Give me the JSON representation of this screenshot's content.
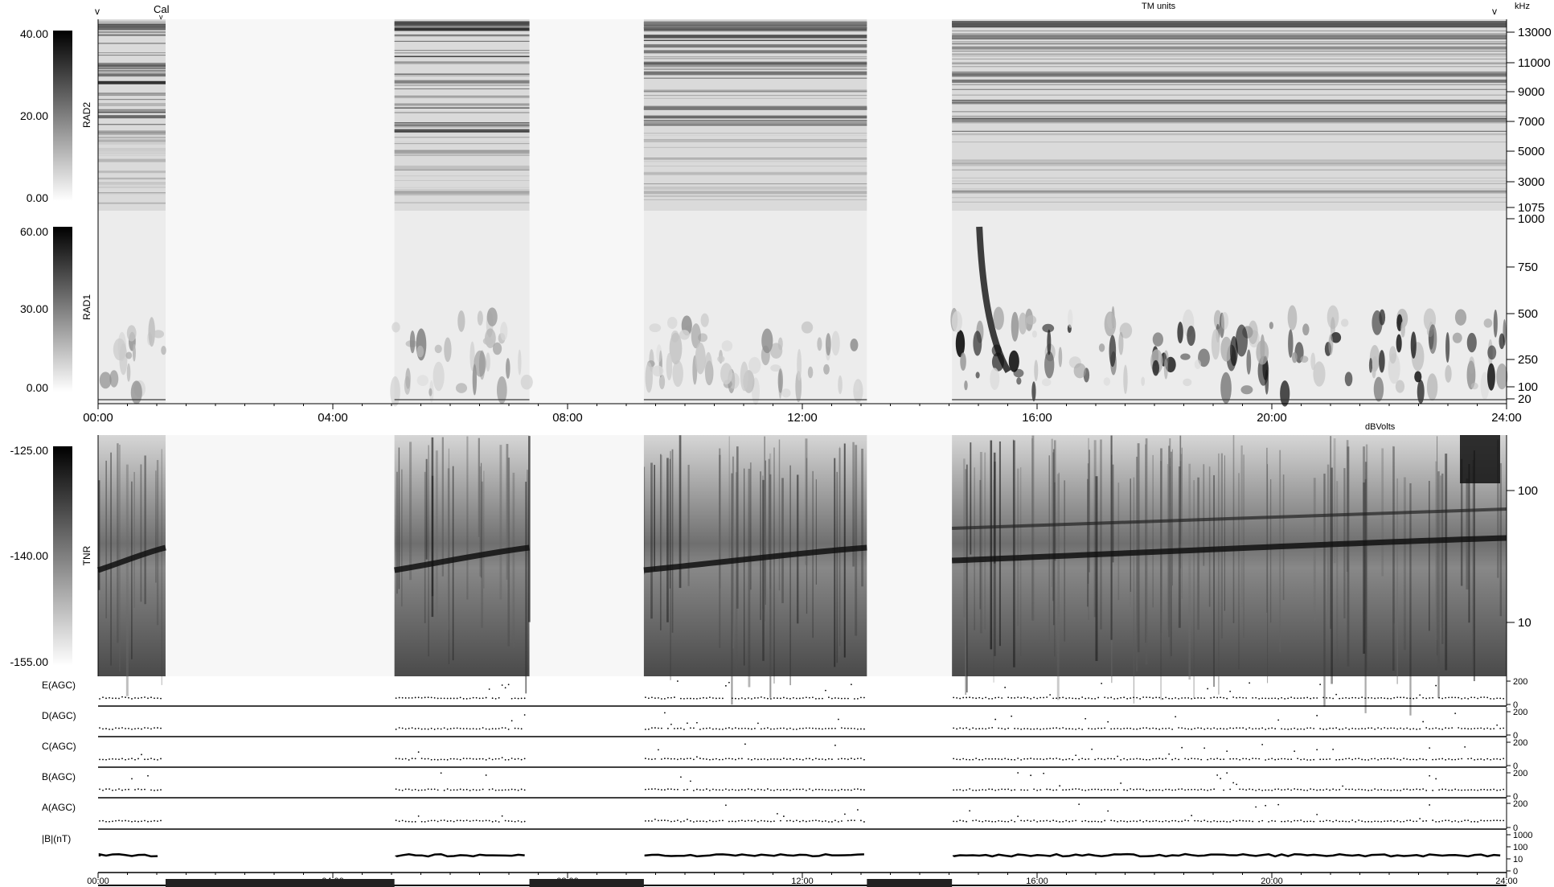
{
  "header": {
    "marker_left": "v",
    "cal_label": "Cal",
    "cal_marker": "v",
    "marker_right": "v",
    "tm_units": "TM units",
    "khz": "kHz",
    "dbvolts": "dBVolts"
  },
  "time_ticks": [
    "00:00",
    "04:00",
    "08:00",
    "12:00",
    "16:00",
    "20:00",
    "24:00"
  ],
  "colors": {
    "background": "#ffffff",
    "ink": "#000000",
    "data_gap": "#f7f7f7"
  },
  "chart_data": {
    "type": "heatmap",
    "x_range_hours": [
      0,
      24
    ],
    "data_intervals_hours": [
      [
        0.0,
        1.15
      ],
      [
        5.05,
        7.35
      ],
      [
        9.3,
        13.1
      ],
      [
        14.55,
        24.0
      ]
    ],
    "timeline_bar_segments_hours": [
      [
        1.15,
        5.05
      ],
      [
        7.35,
        9.3
      ],
      [
        13.1,
        14.55
      ]
    ],
    "panels": [
      {
        "name": "RAD2",
        "colorbar_ticks": [
          "40.00",
          "20.00",
          "0.00"
        ],
        "colorbar_range": [
          0,
          40
        ],
        "freq_ticks": [
          "13000",
          "11000",
          "9000",
          "7000",
          "5000",
          "3000",
          "1075"
        ]
      },
      {
        "name": "RAD1",
        "colorbar_ticks": [
          "60.00",
          "30.00",
          "0.00"
        ],
        "colorbar_range": [
          0,
          60
        ],
        "freq_ticks": [
          "1000",
          "750",
          "500",
          "250",
          "100",
          "20"
        ]
      },
      {
        "name": "TNR",
        "colorbar_ticks": [
          "-125.00",
          "-140.00",
          "-155.00"
        ],
        "colorbar_range": [
          -155,
          -125
        ],
        "freq_ticks": [
          "100",
          "10"
        ]
      }
    ],
    "agc_panels": [
      {
        "name": "E(AGC)",
        "ticks": [
          "200",
          "0"
        ]
      },
      {
        "name": "D(AGC)",
        "ticks": [
          "200",
          "0"
        ]
      },
      {
        "name": "C(AGC)",
        "ticks": [
          "200",
          "0"
        ]
      },
      {
        "name": "B(AGC)",
        "ticks": [
          "200",
          "0"
        ]
      },
      {
        "name": "A(AGC)",
        "ticks": [
          "200",
          "0"
        ]
      },
      {
        "name": "|B|(nT)",
        "ticks": [
          "1000",
          "100",
          "10",
          "0"
        ]
      }
    ]
  }
}
